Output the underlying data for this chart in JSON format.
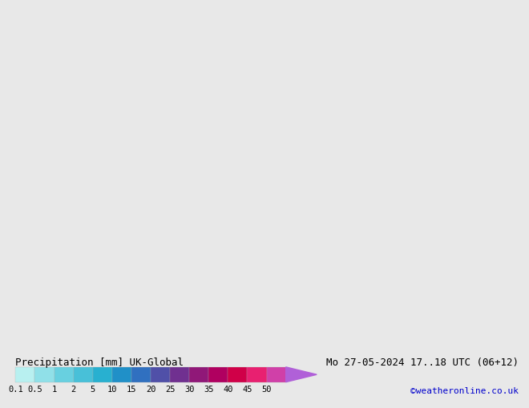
{
  "title_left": "Precipitation [mm] UK-Global",
  "title_right": "Mo 27-05-2024 17..18 UTC (06+12)",
  "credit": "©weatheronline.co.uk",
  "colorbar_labels": [
    "0.1",
    "0.5",
    "1",
    "2",
    "5",
    "10",
    "15",
    "20",
    "25",
    "30",
    "35",
    "40",
    "45",
    "50"
  ],
  "colorbar_colors": [
    "#b8f0f0",
    "#90e0e8",
    "#68d0e0",
    "#48c0d8",
    "#28b0d0",
    "#2090c8",
    "#3070c0",
    "#5050a8",
    "#703090",
    "#901878",
    "#b00060",
    "#d00048",
    "#e82070",
    "#d040a8",
    "#b060d8"
  ],
  "sea_color": "#e8e8e8",
  "land_color": "#c8e8a8",
  "border_color": "#404040",
  "map_extent": [
    0,
    35,
    54,
    72
  ],
  "precip_light_color": "#90d8f0",
  "precip_mid_color": "#4898e0",
  "precip_dark_color": "#1040d0",
  "font_color": "#000000",
  "credit_color": "#0000cc",
  "bottom_bg": "#ffffff",
  "fig_bg": "#e8e8e8",
  "font_size_title": 9,
  "font_size_credit": 8,
  "font_size_labels": 8
}
